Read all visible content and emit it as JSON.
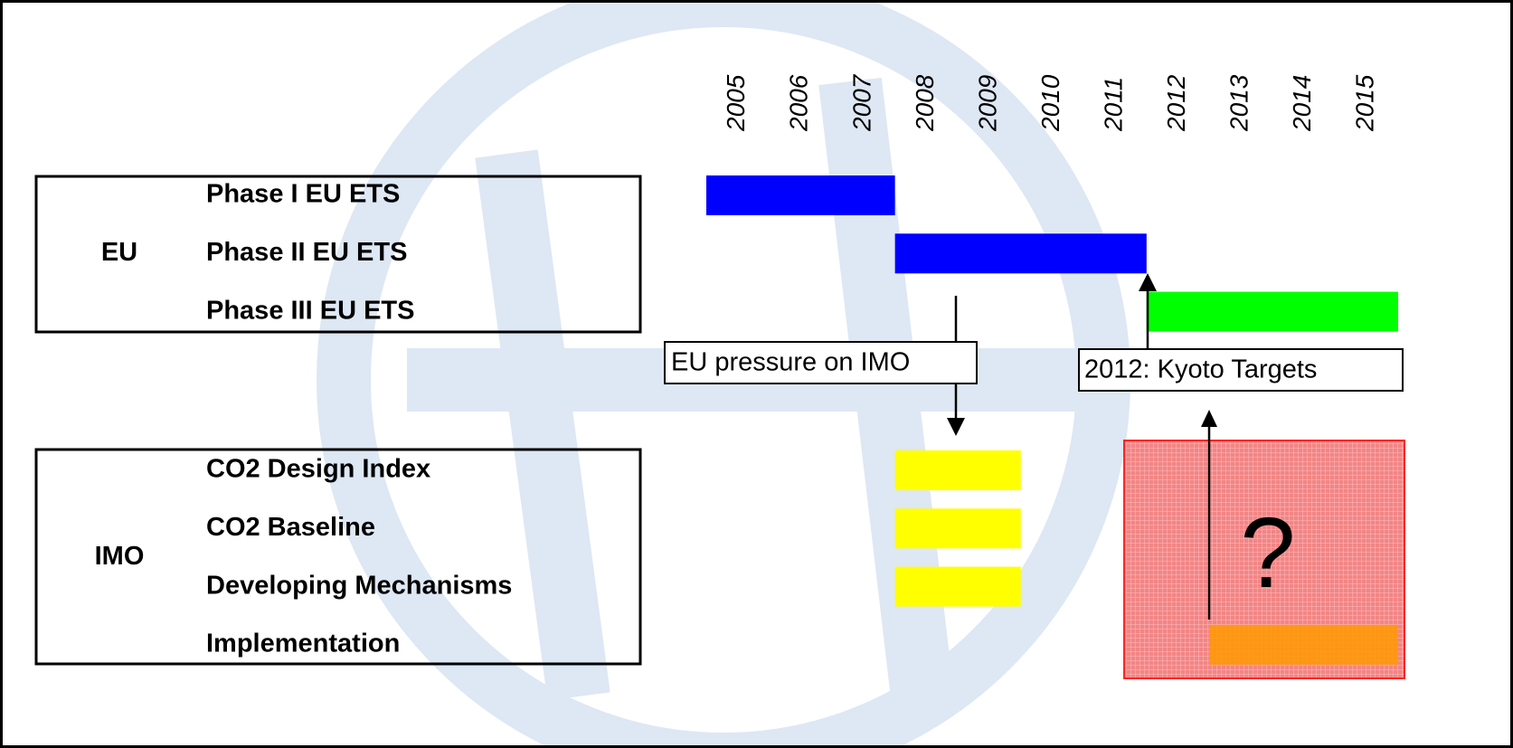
{
  "chart_data": {
    "type": "gantt",
    "xlim": [
      2005,
      2016
    ],
    "xticks": [
      2005,
      2006,
      2007,
      2008,
      2009,
      2010,
      2011,
      2012,
      2013,
      2014,
      2015
    ],
    "groups": [
      {
        "label": "EU",
        "tasks": [
          {
            "name": "Phase I EU ETS",
            "start": 2005,
            "end": 2008,
            "color": "#0000ff"
          },
          {
            "name": "Phase II EU ETS",
            "start": 2008,
            "end": 2012,
            "color": "#0000ff"
          },
          {
            "name": "Phase III EU ETS",
            "start": 2012,
            "end": 2016,
            "color": "#00ff00"
          }
        ]
      },
      {
        "label": "IMO",
        "tasks": [
          {
            "name": "CO2 Design Index",
            "start": 2008,
            "end": 2010,
            "color": "#ffff00"
          },
          {
            "name": "CO2 Baseline",
            "start": 2008,
            "end": 2010,
            "color": "#ffff00"
          },
          {
            "name": "Developing Mechanisms",
            "start": 2008,
            "end": 2010,
            "color": "#ffff00"
          },
          {
            "name": "Implementation",
            "start": 2013,
            "end": 2016,
            "color": "#ff9900"
          }
        ]
      }
    ],
    "annotations": [
      "EU pressure on IMO",
      "2012: Kyoto Targets"
    ],
    "unknown_label": "?"
  }
}
